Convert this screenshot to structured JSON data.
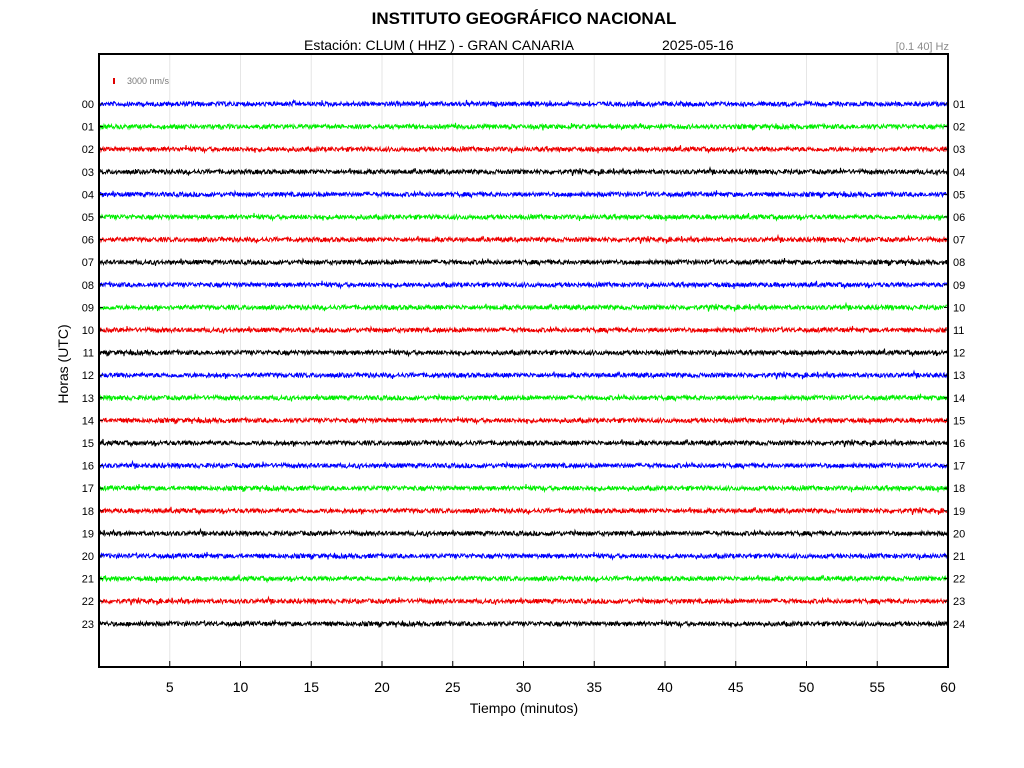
{
  "chart_data": {
    "type": "line",
    "title": "INSTITUTO GEOGRÁFICO NACIONAL",
    "station": "Estación:  CLUM ( HHZ ) - GRAN CANARIA",
    "date": "2025-05-16",
    "filter": "[0.1 40] Hz",
    "scale_label": "3000 nm/s",
    "xlabel": "Tiempo (minutos)",
    "ylabel": "Horas (UTC)",
    "xlim": [
      0,
      60
    ],
    "x_ticks": [
      5,
      10,
      15,
      20,
      25,
      30,
      35,
      40,
      45,
      50,
      55,
      60
    ],
    "grid": true,
    "hour_labels_left": [
      "00",
      "01",
      "02",
      "03",
      "04",
      "05",
      "06",
      "07",
      "08",
      "09",
      "10",
      "11",
      "12",
      "13",
      "14",
      "15",
      "16",
      "17",
      "18",
      "19",
      "20",
      "21",
      "22",
      "23"
    ],
    "hour_labels_right": [
      "01",
      "02",
      "03",
      "04",
      "05",
      "06",
      "07",
      "08",
      "09",
      "10",
      "11",
      "12",
      "13",
      "14",
      "15",
      "16",
      "17",
      "18",
      "19",
      "20",
      "21",
      "22",
      "23",
      "24"
    ],
    "trace_colors": [
      "#0000ff",
      "#00ee00",
      "#ee0000",
      "#000000"
    ],
    "series": [
      {
        "hour": "00",
        "color": "#0000ff"
      },
      {
        "hour": "01",
        "color": "#00ee00"
      },
      {
        "hour": "02",
        "color": "#ee0000"
      },
      {
        "hour": "03",
        "color": "#000000"
      },
      {
        "hour": "04",
        "color": "#0000ff"
      },
      {
        "hour": "05",
        "color": "#00ee00"
      },
      {
        "hour": "06",
        "color": "#ee0000"
      },
      {
        "hour": "07",
        "color": "#000000"
      },
      {
        "hour": "08",
        "color": "#0000ff"
      },
      {
        "hour": "09",
        "color": "#00ee00"
      },
      {
        "hour": "10",
        "color": "#ee0000"
      },
      {
        "hour": "11",
        "color": "#000000"
      },
      {
        "hour": "12",
        "color": "#0000ff"
      },
      {
        "hour": "13",
        "color": "#00ee00"
      },
      {
        "hour": "14",
        "color": "#ee0000"
      },
      {
        "hour": "15",
        "color": "#000000"
      },
      {
        "hour": "16",
        "color": "#0000ff"
      },
      {
        "hour": "17",
        "color": "#00ee00"
      },
      {
        "hour": "18",
        "color": "#ee0000"
      },
      {
        "hour": "19",
        "color": "#000000"
      },
      {
        "hour": "20",
        "color": "#0000ff"
      },
      {
        "hour": "21",
        "color": "#00ee00"
      },
      {
        "hour": "22",
        "color": "#ee0000"
      },
      {
        "hour": "23",
        "color": "#000000"
      }
    ]
  }
}
